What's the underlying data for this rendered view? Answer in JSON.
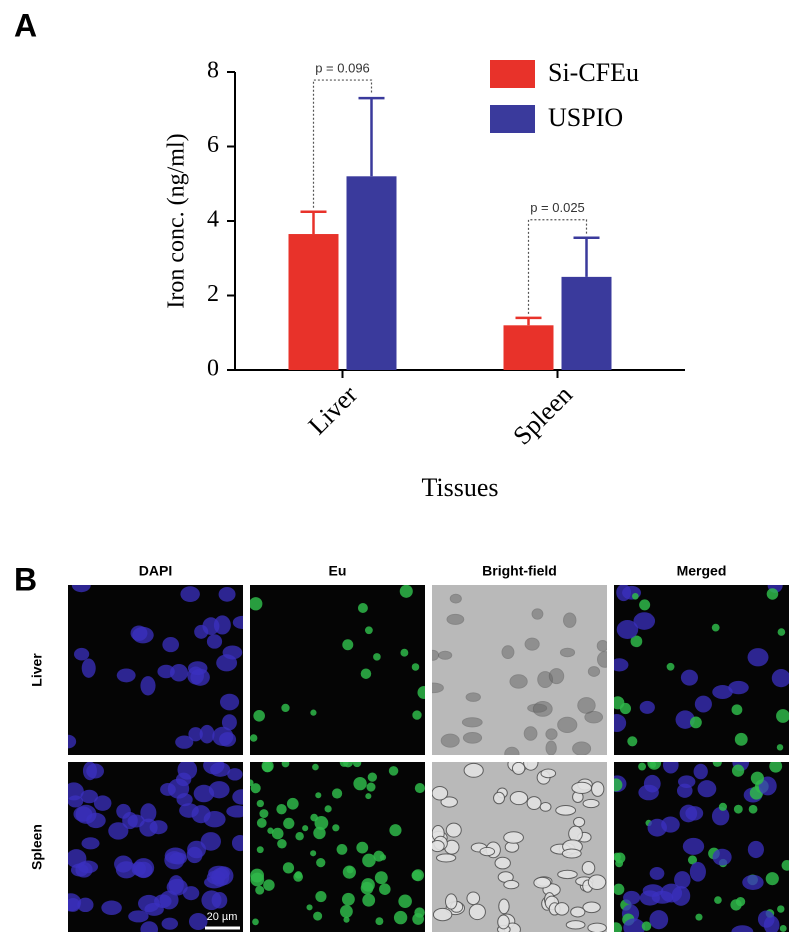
{
  "panels": {
    "a": "A",
    "b": "B"
  },
  "chart_data": {
    "type": "bar",
    "ylabel": "Iron conc. (ng/ml)",
    "xlabel": "Tissues",
    "categories": [
      "Liver",
      "Spleen"
    ],
    "series": [
      {
        "name": "Si-CFEu",
        "color": "#e8322a",
        "values": [
          3.65,
          1.2
        ],
        "errors": [
          0.6,
          0.2
        ]
      },
      {
        "name": "USPIO",
        "color": "#3a3a9c",
        "values": [
          5.2,
          2.5
        ],
        "errors": [
          2.1,
          1.05
        ]
      }
    ],
    "annotations": [
      "p = 0.096",
      "p = 0.025"
    ],
    "ylim": [
      0,
      8
    ],
    "yticks": [
      0,
      2,
      4,
      6,
      8
    ],
    "legend": "top-right"
  },
  "micrographs": {
    "columns": [
      "DAPI",
      "Eu",
      "Bright-field",
      "Merged"
    ],
    "rows": [
      "Liver",
      "Spleen"
    ],
    "scale_bar": "20 µm"
  }
}
